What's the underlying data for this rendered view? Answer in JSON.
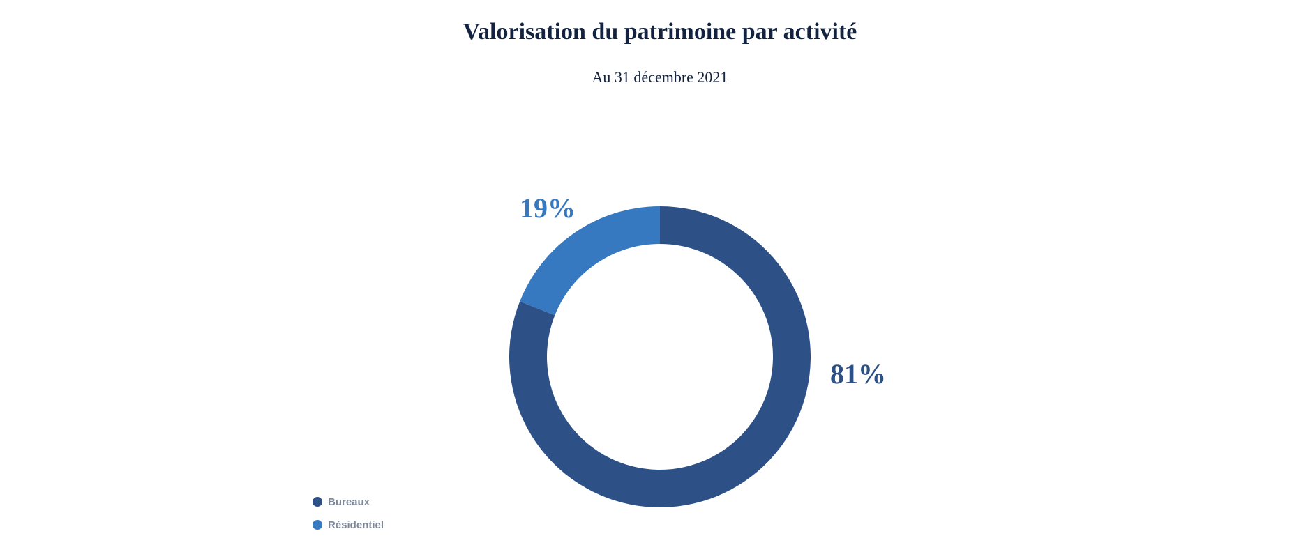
{
  "chart_data": {
    "type": "pie",
    "donut": true,
    "title": "Valorisation du patrimoine par activité",
    "subtitle": "Au 31 décembre 2021",
    "categories": [
      "Bureaux",
      "Résidentiel"
    ],
    "values": [
      81,
      19
    ],
    "value_labels": [
      "81%",
      "19%"
    ],
    "colors": [
      "#2d5186",
      "#3679c1"
    ],
    "legend": "bottom-left"
  }
}
